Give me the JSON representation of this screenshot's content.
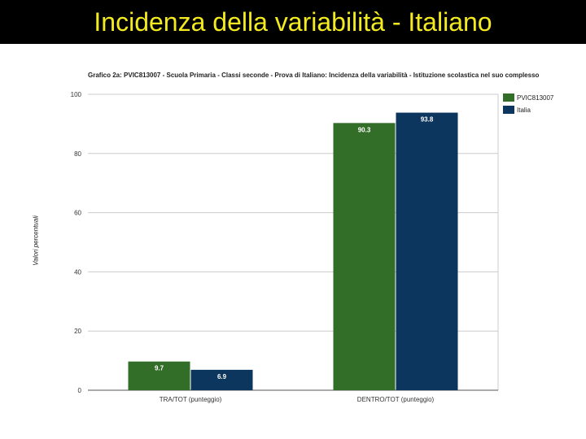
{
  "slide": {
    "title": "Incidenza della variabilità - Italiano"
  },
  "colors": {
    "title_bar": "#000000",
    "title_text": "#f3ea1f",
    "series_school": "#336e29",
    "series_italy": "#0d365e"
  },
  "chart_data": {
    "type": "bar",
    "title": "Grafico 2a: PVIC813007 - Scuola Primaria - Classi seconde - Prova di Italiano: Incidenza della variabilità - Istituzione scolastica nel suo complesso",
    "xlabel": "",
    "ylabel": "Valori percentuali",
    "categories": [
      "TRA/TOT (punteggio)",
      "DENTRO/TOT (punteggio)"
    ],
    "series": [
      {
        "name": "PVIC813007",
        "values": [
          9.7,
          90.3
        ],
        "labels": [
          "9.7",
          "90.3"
        ],
        "color": "#336e29"
      },
      {
        "name": "Italia",
        "values": [
          6.9,
          93.8
        ],
        "labels": [
          "6.9",
          "93.8"
        ],
        "color": "#0d365e"
      }
    ],
    "ylim": [
      0,
      100
    ],
    "yticks": [
      0,
      20,
      40,
      60,
      80,
      100
    ],
    "grid": true,
    "legend_position": "right"
  }
}
